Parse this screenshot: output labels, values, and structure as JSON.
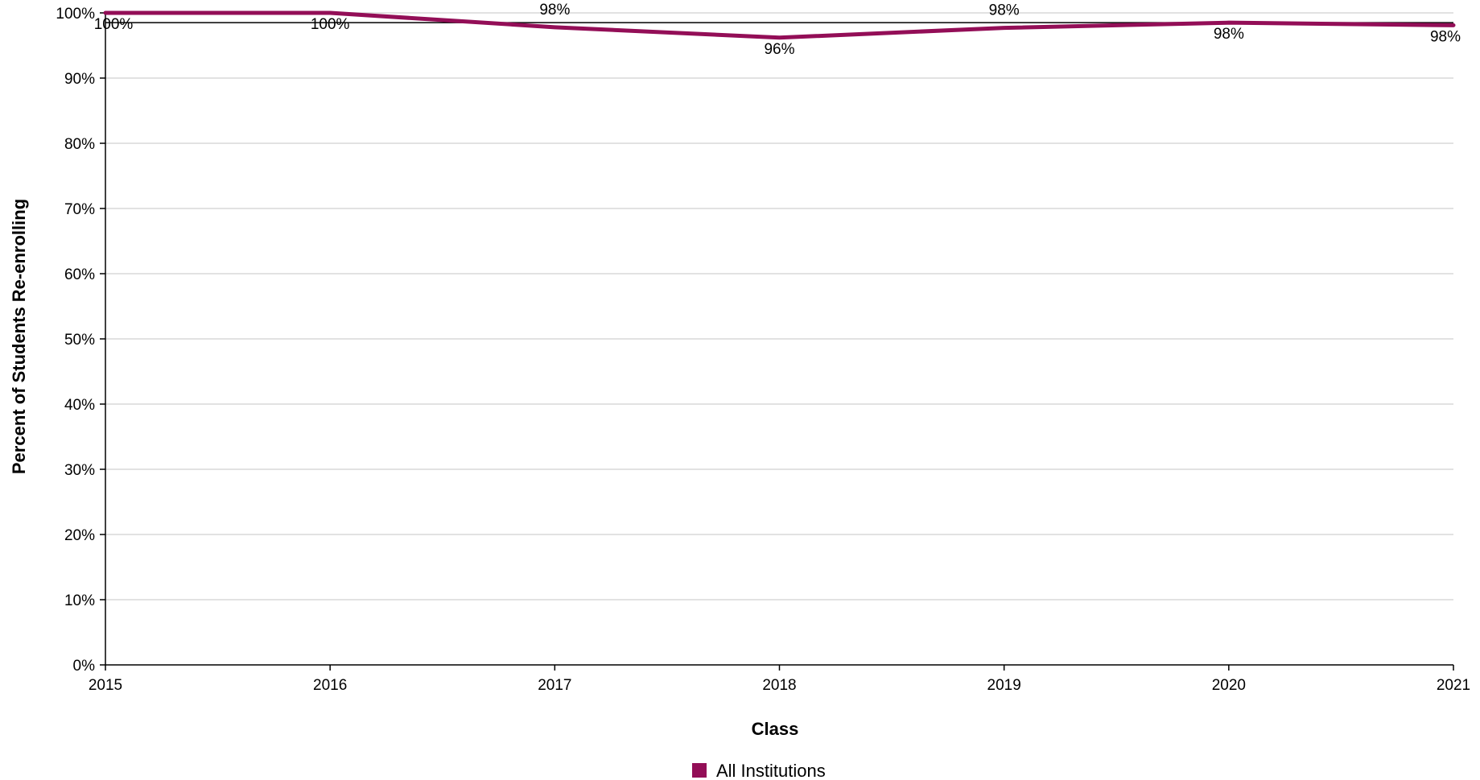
{
  "chart_data": {
    "type": "line",
    "categories": [
      "2015",
      "2016",
      "2017",
      "2018",
      "2019",
      "2020",
      "2021"
    ],
    "series": [
      {
        "name": "All Institutions",
        "values": [
          100,
          100,
          97.8,
          96.2,
          97.7,
          98.5,
          98.1
        ],
        "labels": [
          "100%",
          "100%",
          "98%",
          "96%",
          "98%",
          "98%",
          "98%"
        ],
        "color": "#930e57"
      }
    ],
    "reference_line": 98.5,
    "xlabel": "Class",
    "ylabel": "Percent of Students Re-enrolling",
    "ylim": [
      0,
      100
    ],
    "yticks": [
      "0%",
      "10%",
      "20%",
      "30%",
      "40%",
      "50%",
      "60%",
      "70%",
      "80%",
      "90%",
      "100%"
    ],
    "grid": true,
    "legend_position": "bottom-center"
  }
}
